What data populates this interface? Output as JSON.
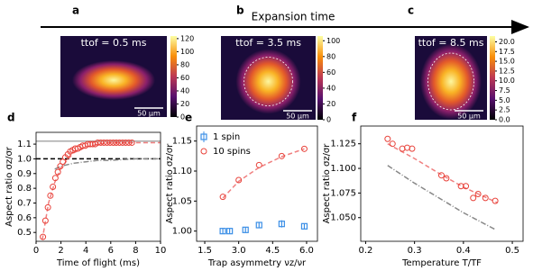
{
  "header": {
    "arrow_label": "Expansion time"
  },
  "chart_data": [
    {
      "type": "heatmap",
      "panel": "a",
      "label": "ttof = 0.5 ms",
      "scale_bar": "50 μm",
      "clim": [
        0,
        124
      ],
      "cticks": [
        0,
        20,
        40,
        60,
        80,
        100,
        120
      ]
    },
    {
      "type": "heatmap",
      "panel": "b",
      "label": "ttof = 3.5 ms",
      "scale_bar": "50 μm",
      "clim": [
        0,
        106
      ],
      "cticks": [
        0,
        20,
        40,
        60,
        80,
        100
      ]
    },
    {
      "type": "heatmap",
      "panel": "c",
      "label": "ttof = 8.5 ms",
      "scale_bar": "50 μm",
      "clim": [
        0,
        21.5
      ],
      "cticks": [
        {
          "value": 0,
          "label": "0.0"
        },
        {
          "value": 2.5,
          "label": "2.5"
        },
        {
          "value": 5,
          "label": "5.0"
        },
        {
          "value": 7.5,
          "label": "7.5"
        },
        {
          "value": 10,
          "label": "10.0"
        },
        {
          "value": 12.5,
          "label": "12.5"
        },
        {
          "value": 15,
          "label": "15.0"
        },
        {
          "value": 17.5,
          "label": "17.5"
        },
        {
          "value": 20,
          "label": "20.0"
        }
      ]
    },
    {
      "type": "xy",
      "panel": "d",
      "xlabel": "Time of flight (ms)",
      "ylabel": "Aspect ratio σz/σr",
      "xlim": [
        0,
        10
      ],
      "xticks": [
        0,
        2,
        4,
        6,
        8,
        10
      ],
      "ylim": [
        0.44,
        1.18
      ],
      "yticks": [
        0.5,
        0.6,
        0.7,
        0.8,
        0.9,
        {
          "value": 1,
          "label": "1.0"
        },
        1.1
      ],
      "series": [
        {
          "kind": "line",
          "style": "solid",
          "color": "#aaaaaa",
          "x": [
            0,
            10
          ],
          "values": [
            1.12,
            1.12
          ]
        },
        {
          "kind": "line",
          "style": "dashed",
          "color": "#000000",
          "x": [
            0,
            10
          ],
          "values": [
            1,
            1
          ]
        },
        {
          "kind": "line",
          "style": "dashdot",
          "color": "#888888",
          "x": [
            1.5,
            2,
            3,
            4,
            5,
            6,
            8,
            10
          ],
          "values": [
            0.93,
            0.95,
            0.97,
            0.98,
            0.99,
            0.99,
            1,
            1
          ]
        },
        {
          "kind": "line",
          "style": "dashed",
          "color": "#f08080",
          "x": [
            0.5,
            1,
            1.5,
            2,
            3,
            4,
            5,
            6,
            8,
            10
          ],
          "values": [
            0.45,
            0.7,
            0.84,
            0.94,
            1.04,
            1.08,
            1.1,
            1.11,
            1.11,
            1.11
          ]
        },
        {
          "kind": "scatter",
          "marker": "circle",
          "color": "#e8423a",
          "x": [
            0.55,
            0.75,
            0.95,
            1.15,
            1.35,
            1.55,
            1.75,
            1.95,
            2.15,
            2.35,
            2.55,
            2.75,
            2.95,
            3.15,
            3.35,
            3.55,
            3.75,
            3.95,
            4.15,
            4.35,
            4.55,
            4.75,
            4.95,
            5.2,
            5.45,
            5.7,
            5.95,
            6.2,
            6.45,
            6.7,
            6.95,
            7.2,
            7.45,
            7.7
          ],
          "values": [
            0.47,
            0.58,
            0.67,
            0.75,
            0.81,
            0.87,
            0.91,
            0.95,
            0.98,
            1.01,
            1.03,
            1.05,
            1.06,
            1.07,
            1.07,
            1.08,
            1.09,
            1.09,
            1.1,
            1.1,
            1.1,
            1.1,
            1.11,
            1.11,
            1.11,
            1.11,
            1.11,
            1.11,
            1.11,
            1.11,
            1.11,
            1.11,
            1.11,
            1.11
          ]
        }
      ]
    },
    {
      "type": "xy",
      "panel": "e",
      "xlabel": "Trap asymmetry νz/νr",
      "ylabel": "Aspect ratio σz/σr",
      "xlim": [
        1.14,
        6.48
      ],
      "xticks": [
        1.5,
        {
          "value": 3,
          "label": "3.0"
        },
        4.5,
        {
          "value": 6,
          "label": "6.0"
        }
      ],
      "ylim": [
        0.983,
        1.175
      ],
      "yticks": [
        {
          "value": 1,
          "label": "1.00"
        },
        {
          "value": 1.05,
          "label": "1.05"
        },
        {
          "value": 1.1,
          "label": "1.10"
        },
        {
          "value": 1.15,
          "label": "1.15"
        }
      ],
      "legend": "upper left",
      "series": [
        {
          "kind": "line",
          "style": "dashed",
          "color": "#f08080",
          "x": [
            2.3,
            3,
            3.9,
            4.9,
            5.9
          ],
          "values": [
            1.055,
            1.083,
            1.106,
            1.124,
            1.137
          ]
        },
        {
          "kind": "scatter",
          "marker": "square",
          "name": "1 spin",
          "color": "#3a8ee6",
          "x": [
            2.3,
            2.6,
            3.3,
            3.9,
            4.9,
            5.9
          ],
          "values": [
            1,
            1,
            1.002,
            1.01,
            1.012,
            1.008
          ],
          "errors": [
            0.004,
            0.004,
            0.004,
            0.005,
            0.006,
            0.004
          ]
        },
        {
          "kind": "scatter",
          "marker": "circle",
          "name": "10 spins",
          "color": "#e8423a",
          "x": [
            2.3,
            3,
            3.9,
            4.9,
            5.9
          ],
          "values": [
            1.057,
            1.085,
            1.11,
            1.125,
            1.137
          ]
        }
      ]
    },
    {
      "type": "xy",
      "panel": "f",
      "xlabel": "Temperature T/TF",
      "ylabel": "Aspect ratio σz/σr",
      "xlim": [
        0.19,
        0.522
      ],
      "xticks": [
        0.2,
        0.3,
        0.4,
        0.5
      ],
      "ylim": [
        1.026,
        1.143
      ],
      "yticks": [
        {
          "value": 1.05,
          "label": "1.050"
        },
        {
          "value": 1.075,
          "label": "1.075"
        },
        {
          "value": 1.1,
          "label": "1.100"
        },
        {
          "value": 1.125,
          "label": "1.125"
        }
      ],
      "series": [
        {
          "kind": "line",
          "style": "dashdot",
          "color": "#888888",
          "x": [
            0.245,
            0.3,
            0.35,
            0.4,
            0.465
          ],
          "values": [
            1.103,
            1.085,
            1.07,
            1.055,
            1.038
          ]
        },
        {
          "kind": "line",
          "style": "dashed",
          "color": "#f08080",
          "x": [
            0.245,
            0.3,
            0.35,
            0.4,
            0.47
          ],
          "values": [
            1.125,
            1.11,
            1.095,
            1.081,
            1.065
          ]
        },
        {
          "kind": "scatter",
          "marker": "circle",
          "color": "#e8423a",
          "x": [
            0.245,
            0.255,
            0.275,
            0.285,
            0.295,
            0.355,
            0.365,
            0.395,
            0.405,
            0.42,
            0.43,
            0.445,
            0.465
          ],
          "values": [
            1.13,
            1.125,
            1.12,
            1.121,
            1.12,
            1.093,
            1.09,
            1.082,
            1.082,
            1.07,
            1.074,
            1.07,
            1.067
          ]
        }
      ]
    }
  ]
}
